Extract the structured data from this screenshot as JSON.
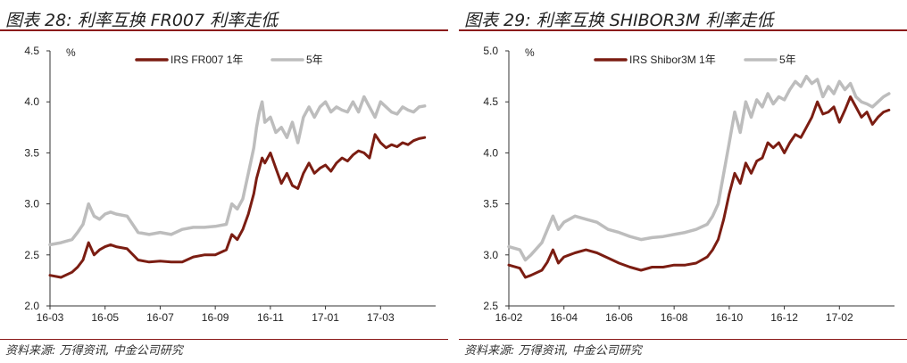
{
  "chart_data": [
    {
      "type": "line",
      "figure_title": "图表 28: 利率互换 FR007 利率走低",
      "unit": "%",
      "source": "资料来源: 万得资讯, 中金公司研究",
      "x_labels": [
        "16-03",
        "16-05",
        "16-07",
        "16-09",
        "16-11",
        "17-01",
        "17-03"
      ],
      "y_ticks": [
        "2.0",
        "2.5",
        "3.0",
        "3.5",
        "4.0",
        "4.5"
      ],
      "ylim": [
        2.0,
        4.5
      ],
      "x_range": [
        0,
        70
      ],
      "legend_position": "top",
      "series": [
        {
          "name": "IRS FR007 1年",
          "color": "#7b1d12",
          "x": [
            0,
            2,
            4,
            5,
            6,
            7,
            8,
            9,
            10,
            11,
            12,
            14,
            16,
            18,
            20,
            22,
            24,
            26,
            28,
            30,
            32,
            33,
            34,
            35,
            36,
            37,
            37.5,
            38,
            38.5,
            39,
            40,
            41,
            42,
            43,
            44,
            45,
            46,
            47,
            48,
            49,
            50,
            51,
            52,
            53,
            54,
            55,
            56,
            57,
            58,
            59,
            60,
            61,
            62,
            63,
            64,
            65,
            66,
            67,
            68
          ],
          "values": [
            2.3,
            2.28,
            2.33,
            2.38,
            2.45,
            2.62,
            2.5,
            2.55,
            2.58,
            2.6,
            2.58,
            2.56,
            2.45,
            2.43,
            2.44,
            2.43,
            2.43,
            2.48,
            2.5,
            2.5,
            2.55,
            2.7,
            2.65,
            2.75,
            2.9,
            3.1,
            3.25,
            3.35,
            3.45,
            3.4,
            3.5,
            3.35,
            3.2,
            3.3,
            3.18,
            3.15,
            3.3,
            3.4,
            3.3,
            3.35,
            3.38,
            3.32,
            3.4,
            3.45,
            3.42,
            3.48,
            3.52,
            3.5,
            3.45,
            3.68,
            3.6,
            3.55,
            3.58,
            3.56,
            3.6,
            3.58,
            3.62,
            3.64,
            3.65
          ]
        },
        {
          "name": "5年",
          "color": "#bdbdbd",
          "x": [
            0,
            2,
            4,
            5,
            6,
            7,
            8,
            9,
            10,
            11,
            12,
            14,
            16,
            18,
            20,
            22,
            24,
            26,
            28,
            30,
            32,
            33,
            34,
            35,
            36,
            37,
            37.5,
            38,
            38.5,
            39,
            40,
            41,
            42,
            43,
            44,
            45,
            46,
            47,
            48,
            49,
            50,
            51,
            52,
            53,
            54,
            55,
            56,
            57,
            58,
            59,
            60,
            61,
            62,
            63,
            64,
            65,
            66,
            67,
            68
          ],
          "values": [
            2.6,
            2.62,
            2.65,
            2.72,
            2.8,
            3.0,
            2.88,
            2.85,
            2.9,
            2.92,
            2.9,
            2.88,
            2.72,
            2.7,
            2.72,
            2.7,
            2.75,
            2.77,
            2.77,
            2.78,
            2.8,
            3.0,
            2.95,
            3.05,
            3.3,
            3.55,
            3.75,
            3.9,
            4.0,
            3.8,
            3.85,
            3.7,
            3.75,
            3.65,
            3.8,
            3.6,
            3.85,
            3.95,
            3.85,
            3.95,
            4.0,
            3.9,
            3.95,
            3.92,
            3.9,
            4.0,
            3.9,
            4.05,
            3.95,
            3.85,
            4.0,
            3.95,
            3.9,
            3.88,
            3.95,
            3.92,
            3.9,
            3.95,
            3.96
          ]
        }
      ]
    },
    {
      "type": "line",
      "figure_title": "图表 29: 利率互换 SHIBOR3M 利率走低",
      "unit": "%",
      "source": "资料来源: 万得资讯, 中金公司研究",
      "x_labels": [
        "16-02",
        "16-04",
        "16-06",
        "16-08",
        "16-10",
        "16-12",
        "17-02"
      ],
      "y_ticks": [
        "2.5",
        "3.0",
        "3.5",
        "4.0",
        "4.5",
        "5.0"
      ],
      "ylim": [
        2.5,
        5.0
      ],
      "x_range": [
        0,
        70
      ],
      "legend_position": "top",
      "series": [
        {
          "name": "IRS Shibor3M 1年",
          "color": "#7b1d12",
          "x": [
            0,
            2,
            3,
            4,
            6,
            7,
            8,
            9,
            10,
            12,
            14,
            16,
            18,
            20,
            22,
            24,
            26,
            28,
            30,
            32,
            34,
            36,
            37,
            38,
            39,
            40,
            41,
            42,
            43,
            44,
            45,
            46,
            47,
            48,
            49,
            50,
            51,
            52,
            53,
            54,
            55,
            56,
            57,
            58,
            59,
            60,
            61,
            62,
            63,
            64,
            65,
            66,
            67,
            68,
            69
          ],
          "values": [
            2.9,
            2.87,
            2.78,
            2.8,
            2.85,
            2.93,
            3.05,
            2.92,
            2.98,
            3.02,
            3.05,
            3.02,
            2.97,
            2.92,
            2.88,
            2.85,
            2.88,
            2.88,
            2.9,
            2.9,
            2.92,
            2.98,
            3.05,
            3.15,
            3.35,
            3.6,
            3.8,
            3.7,
            3.9,
            3.8,
            3.92,
            3.95,
            4.1,
            4.05,
            4.1,
            4.0,
            4.1,
            4.18,
            4.15,
            4.25,
            4.35,
            4.5,
            4.38,
            4.4,
            4.45,
            4.3,
            4.42,
            4.55,
            4.45,
            4.35,
            4.4,
            4.28,
            4.35,
            4.4,
            4.42
          ]
        },
        {
          "name": "5年",
          "color": "#bdbdbd",
          "x": [
            0,
            2,
            3,
            4,
            6,
            7,
            8,
            9,
            10,
            12,
            14,
            16,
            18,
            20,
            22,
            24,
            26,
            28,
            30,
            32,
            34,
            36,
            37,
            38,
            39,
            40,
            41,
            42,
            43,
            44,
            45,
            46,
            47,
            48,
            49,
            50,
            51,
            52,
            53,
            54,
            55,
            56,
            57,
            58,
            59,
            60,
            61,
            62,
            63,
            64,
            65,
            66,
            67,
            68,
            69
          ],
          "values": [
            3.08,
            3.05,
            2.95,
            3.0,
            3.12,
            3.25,
            3.38,
            3.25,
            3.32,
            3.38,
            3.35,
            3.32,
            3.25,
            3.22,
            3.18,
            3.15,
            3.17,
            3.18,
            3.2,
            3.22,
            3.25,
            3.3,
            3.38,
            3.5,
            3.8,
            4.1,
            4.4,
            4.2,
            4.5,
            4.35,
            4.52,
            4.45,
            4.58,
            4.48,
            4.55,
            4.52,
            4.62,
            4.7,
            4.65,
            4.75,
            4.68,
            4.72,
            4.55,
            4.65,
            4.58,
            4.7,
            4.62,
            4.68,
            4.55,
            4.5,
            4.48,
            4.45,
            4.5,
            4.55,
            4.58
          ]
        }
      ]
    }
  ]
}
